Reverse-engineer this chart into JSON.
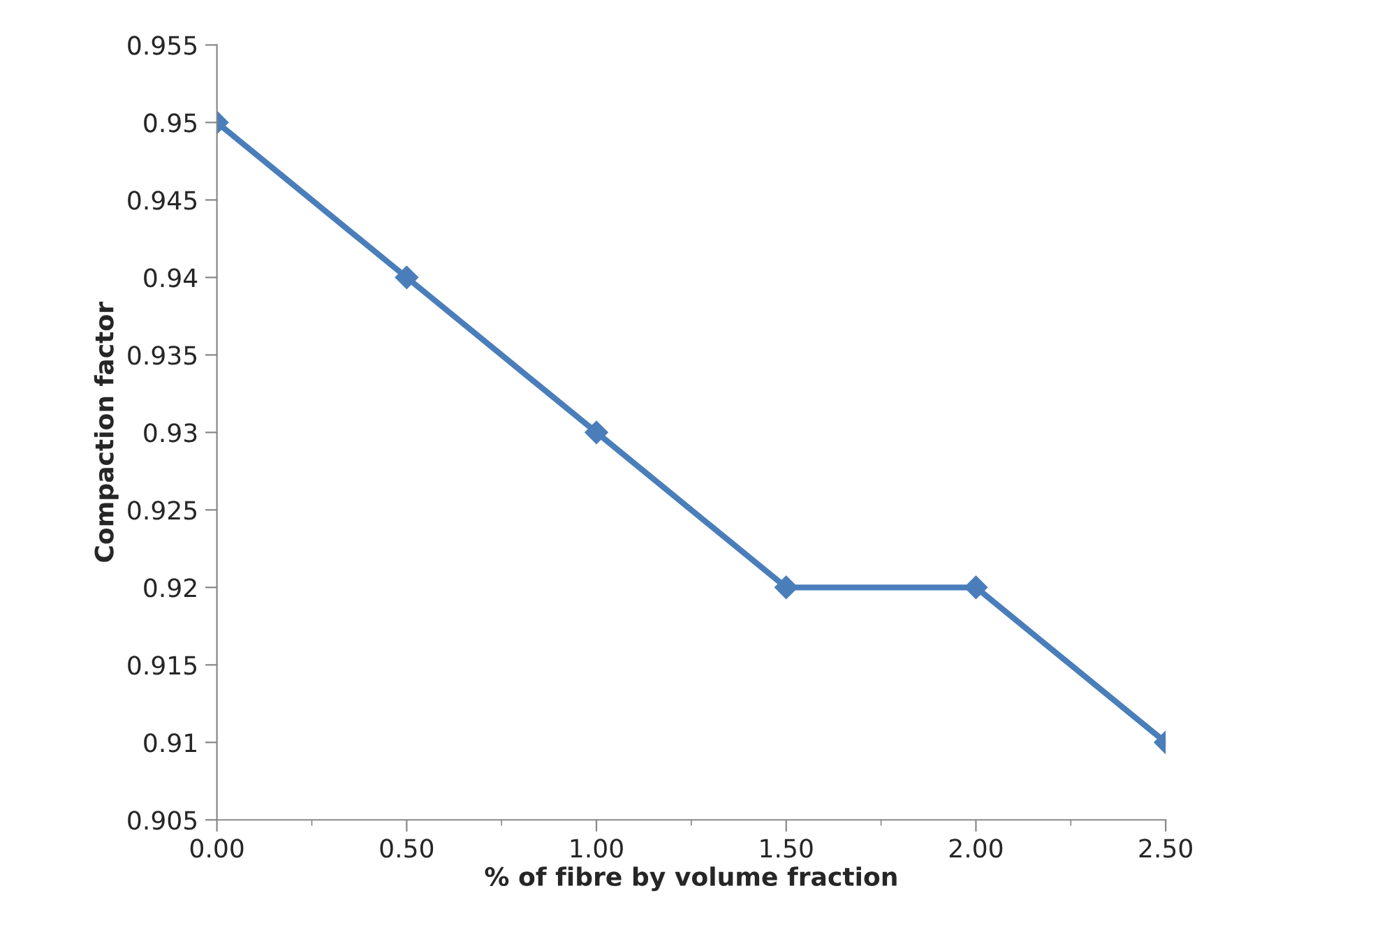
{
  "chart_data": {
    "type": "line",
    "xlabel": "% of fibre by volume fraction",
    "ylabel": "Compaction factor",
    "x": [
      0,
      0.5,
      1,
      1.5,
      2,
      2.5
    ],
    "series": [
      {
        "color": "#4a7ebb",
        "values": [
          0.95,
          0.94,
          0.93,
          0.92,
          0.92,
          0.91
        ]
      }
    ],
    "xlim": [
      0,
      2.5
    ],
    "xticks": [
      {
        "value": 0,
        "label": "0.00"
      },
      {
        "value": 0.5,
        "label": "0.50"
      },
      {
        "value": 1,
        "label": "1.00"
      },
      {
        "value": 1.5,
        "label": "1.50"
      },
      {
        "value": 2,
        "label": "2.00"
      },
      {
        "value": 2.5,
        "label": "2.50"
      }
    ],
    "ylim": [
      0.905,
      0.955
    ],
    "yticks": [
      0.905,
      0.91,
      0.915,
      0.92,
      0.925,
      0.93,
      0.935,
      0.94,
      0.945,
      0.95,
      0.955
    ],
    "marker": "diamond",
    "line_style": "solid",
    "grid": false,
    "legend": false
  }
}
